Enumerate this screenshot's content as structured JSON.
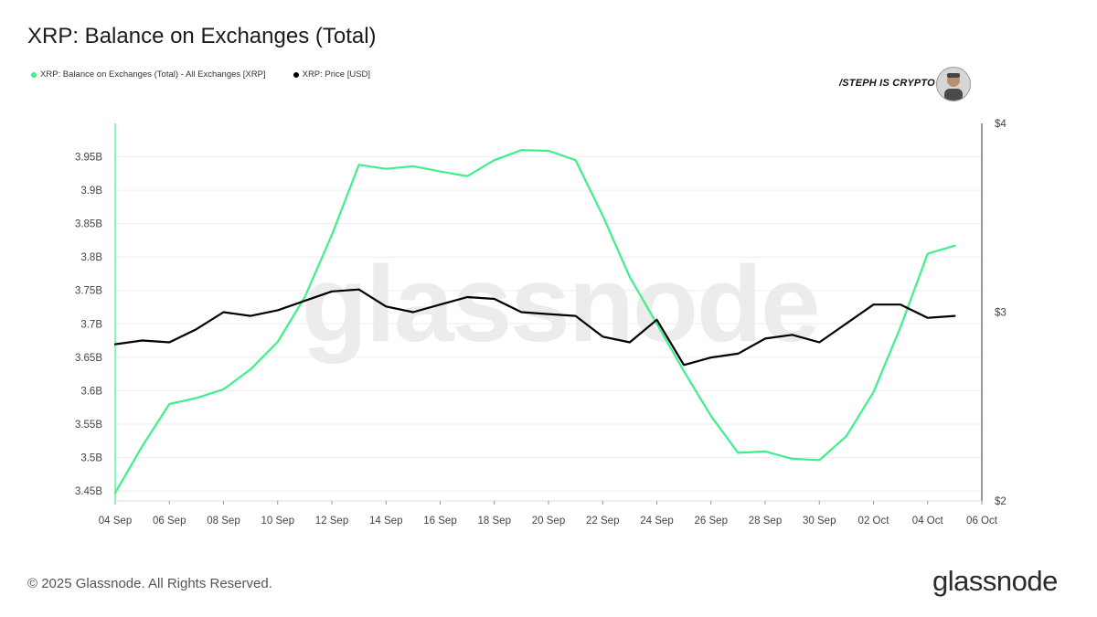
{
  "header": {
    "title": "XRP: Balance on Exchanges (Total)"
  },
  "legend": {
    "items": [
      {
        "label": "XRP: Balance on Exchanges (Total) - All Exchanges [XRP]",
        "color": "#3ef08a"
      },
      {
        "label": "XRP: Price [USD]",
        "color": "#000000"
      }
    ]
  },
  "watermark": {
    "brand_text": "/STEPH IS CRYPTO",
    "background_text": "glassnode"
  },
  "footer": {
    "copyright": "© 2025 Glassnode. All Rights Reserved.",
    "logo": "glassnode"
  },
  "chart_data": {
    "type": "line",
    "title": "XRP: Balance on Exchanges (Total)",
    "x_ticks": [
      "04 Sep",
      "06 Sep",
      "08 Sep",
      "10 Sep",
      "12 Sep",
      "14 Sep",
      "16 Sep",
      "18 Sep",
      "20 Sep",
      "22 Sep",
      "24 Sep",
      "26 Sep",
      "28 Sep",
      "30 Sep",
      "02 Oct",
      "04 Oct",
      "06 Oct"
    ],
    "x_start": "04 Sep",
    "y_left": {
      "ticks": [
        "3.45B",
        "3.5B",
        "3.55B",
        "3.6B",
        "3.65B",
        "3.7B",
        "3.75B",
        "3.8B",
        "3.85B",
        "3.9B",
        "3.95B"
      ],
      "range": [
        3.435,
        4.0
      ]
    },
    "y_right": {
      "ticks": [
        "$2",
        "$3",
        "$4"
      ],
      "range": [
        2,
        4
      ]
    },
    "grid": true,
    "series": [
      {
        "name": "XRP: Balance on Exchanges (Total) - All Exchanges [XRP]",
        "axis": "left",
        "color": "#3ef08a",
        "unit": "B XRP",
        "values": [
          3.447,
          3.517,
          3.58,
          3.589,
          3.602,
          3.632,
          3.673,
          3.74,
          3.833,
          3.938,
          3.932,
          3.936,
          3.928,
          3.921,
          3.945,
          3.96,
          3.959,
          3.945,
          3.862,
          3.77,
          3.7,
          3.629,
          3.562,
          3.507,
          3.509,
          3.498,
          3.496,
          3.532,
          3.598,
          3.695,
          3.805,
          3.817
        ]
      },
      {
        "name": "XRP: Price [USD]",
        "axis": "right",
        "color": "#000000",
        "unit": "USD",
        "values": [
          2.83,
          2.85,
          2.84,
          2.91,
          3.0,
          2.98,
          3.01,
          3.06,
          3.11,
          3.12,
          3.03,
          3.0,
          3.04,
          3.08,
          3.07,
          3.0,
          2.99,
          2.98,
          2.87,
          2.84,
          2.96,
          2.72,
          2.76,
          2.78,
          2.86,
          2.88,
          2.84,
          2.94,
          3.04,
          3.04,
          2.97,
          2.98
        ]
      }
    ]
  }
}
